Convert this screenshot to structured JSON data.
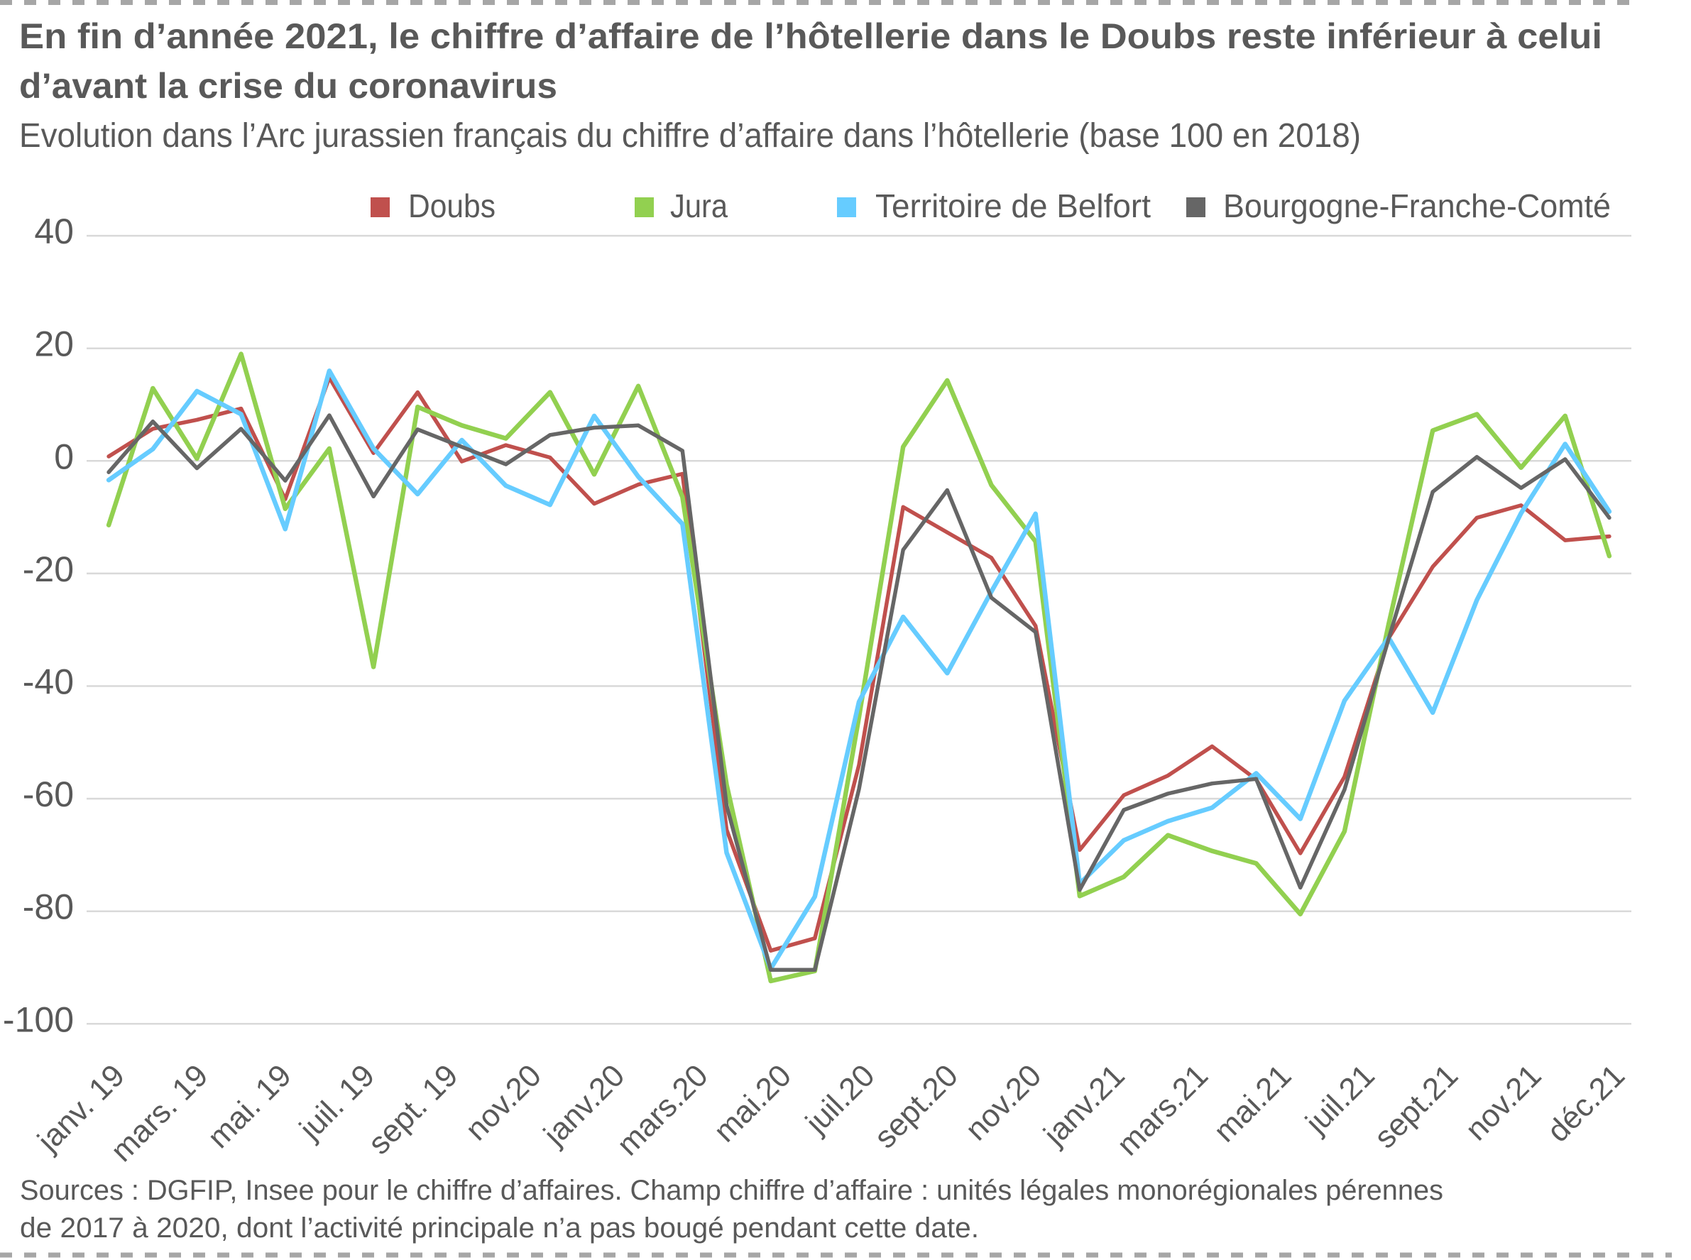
{
  "header": {
    "title_lines": [
      "En fin d’année 2021, le chiffre d’affaire de l’hôtellerie dans le Doubs reste inférieur à celui",
      "d’avant la crise du coronavirus"
    ]
  },
  "footer": {
    "source_lines": [
      "Sources : DGFIP, Insee pour le chiffre d’affaires.  Champ chiffre d’affaire : unités légales monorégionales pérennes",
      "de 2017 à 2020, dont l’activité principale n’a pas bougé pendant cette date."
    ]
  },
  "chart_data": {
    "type": "line",
    "title": "En fin d’année 2021, le chiffre d’affaire de l’hôtellerie dans le Doubs reste inférieur à celui d’avant la crise du coronavirus",
    "subtitle": "Evolution dans l’Arc jurassien français du chiffre d’affaire dans l’hôtellerie (base 100 en 2018)",
    "xlabel": "",
    "ylabel": "",
    "x_tick_labels": [
      "janv. 19",
      "mars. 19",
      "mai. 19",
      "juil. 19",
      "sept. 19",
      "nov.20",
      "janv.20",
      "mars.20",
      "mai.20",
      "juil.20",
      "sept.20",
      "nov.20",
      "janv.21",
      "mars.21",
      "mai.21",
      "juil.21",
      "sept.21",
      "nov.21",
      "déc.21"
    ],
    "ylim": [
      -100,
      40
    ],
    "yticks": [
      40,
      20,
      0,
      -20,
      -40,
      -60,
      -80,
      -100
    ],
    "ytick_labels": [
      "40",
      "20",
      "0",
      "-20",
      "-40",
      "-60",
      "-80",
      "-100"
    ],
    "grid": "horizontal",
    "legend_position": "top",
    "series": [
      {
        "name": "Doubs",
        "color": "#c0504d",
        "values": [
          0.8,
          5.7,
          7.3,
          9.3,
          -6.8,
          14.8,
          1.4,
          12.2,
          -0.1,
          2.8,
          0.6,
          -7.6,
          -4.2,
          -2.3,
          -65.5,
          -87.0,
          -84.8,
          -54.0,
          -8.2,
          -12.7,
          -17.2,
          -29.3,
          -69.1,
          -59.4,
          -55.9,
          -50.7,
          -56.6,
          -69.7,
          -56.1,
          -31.5,
          -18.8,
          -10.1,
          -7.9,
          -14.1,
          -13.4
        ]
      },
      {
        "name": "Jura",
        "color": "#92d050",
        "values": [
          -11.4,
          12.9,
          0.4,
          19.0,
          -8.5,
          2.2,
          -36.6,
          9.6,
          6.3,
          4.0,
          12.2,
          -2.4,
          13.3,
          -6.4,
          -57.5,
          -92.4,
          -90.6,
          -45.5,
          2.5,
          14.3,
          -4.3,
          -14.3,
          -77.3,
          -73.9,
          -66.5,
          -69.3,
          -71.5,
          -80.5,
          -65.8,
          -29.0,
          5.4,
          8.3,
          -1.2,
          8.0,
          -16.9
        ]
      },
      {
        "name": "Territoire de Belfort",
        "color": "#66ccff",
        "values": [
          -3.4,
          2.1,
          12.4,
          8.3,
          -12.1,
          16.0,
          2.2,
          -5.9,
          3.7,
          -4.4,
          -7.8,
          8.0,
          -2.8,
          -11.2,
          -69.6,
          -90.2,
          -77.4,
          -42.8,
          -27.7,
          -37.7,
          -23.2,
          -9.4,
          -75.1,
          -67.4,
          -64.0,
          -61.6,
          -55.5,
          -63.6,
          -42.6,
          -31.4,
          -44.7,
          -24.7,
          -9.3,
          3.0,
          -9.0
        ]
      },
      {
        "name": "Bourgogne-Franche-Comté",
        "color": "#666666",
        "values": [
          -2.0,
          7.0,
          -1.3,
          5.7,
          -3.5,
          8.1,
          -6.3,
          5.6,
          2.5,
          -0.6,
          4.6,
          5.9,
          6.3,
          1.8,
          -61.2,
          -90.4,
          -90.4,
          -58.3,
          -15.8,
          -5.2,
          -24.3,
          -30.4,
          -76.2,
          -62.0,
          -59.1,
          -57.3,
          -56.5,
          -75.8,
          -58.4,
          -31.6,
          -5.5,
          0.7,
          -4.8,
          0.3,
          -10.1
        ]
      }
    ]
  }
}
